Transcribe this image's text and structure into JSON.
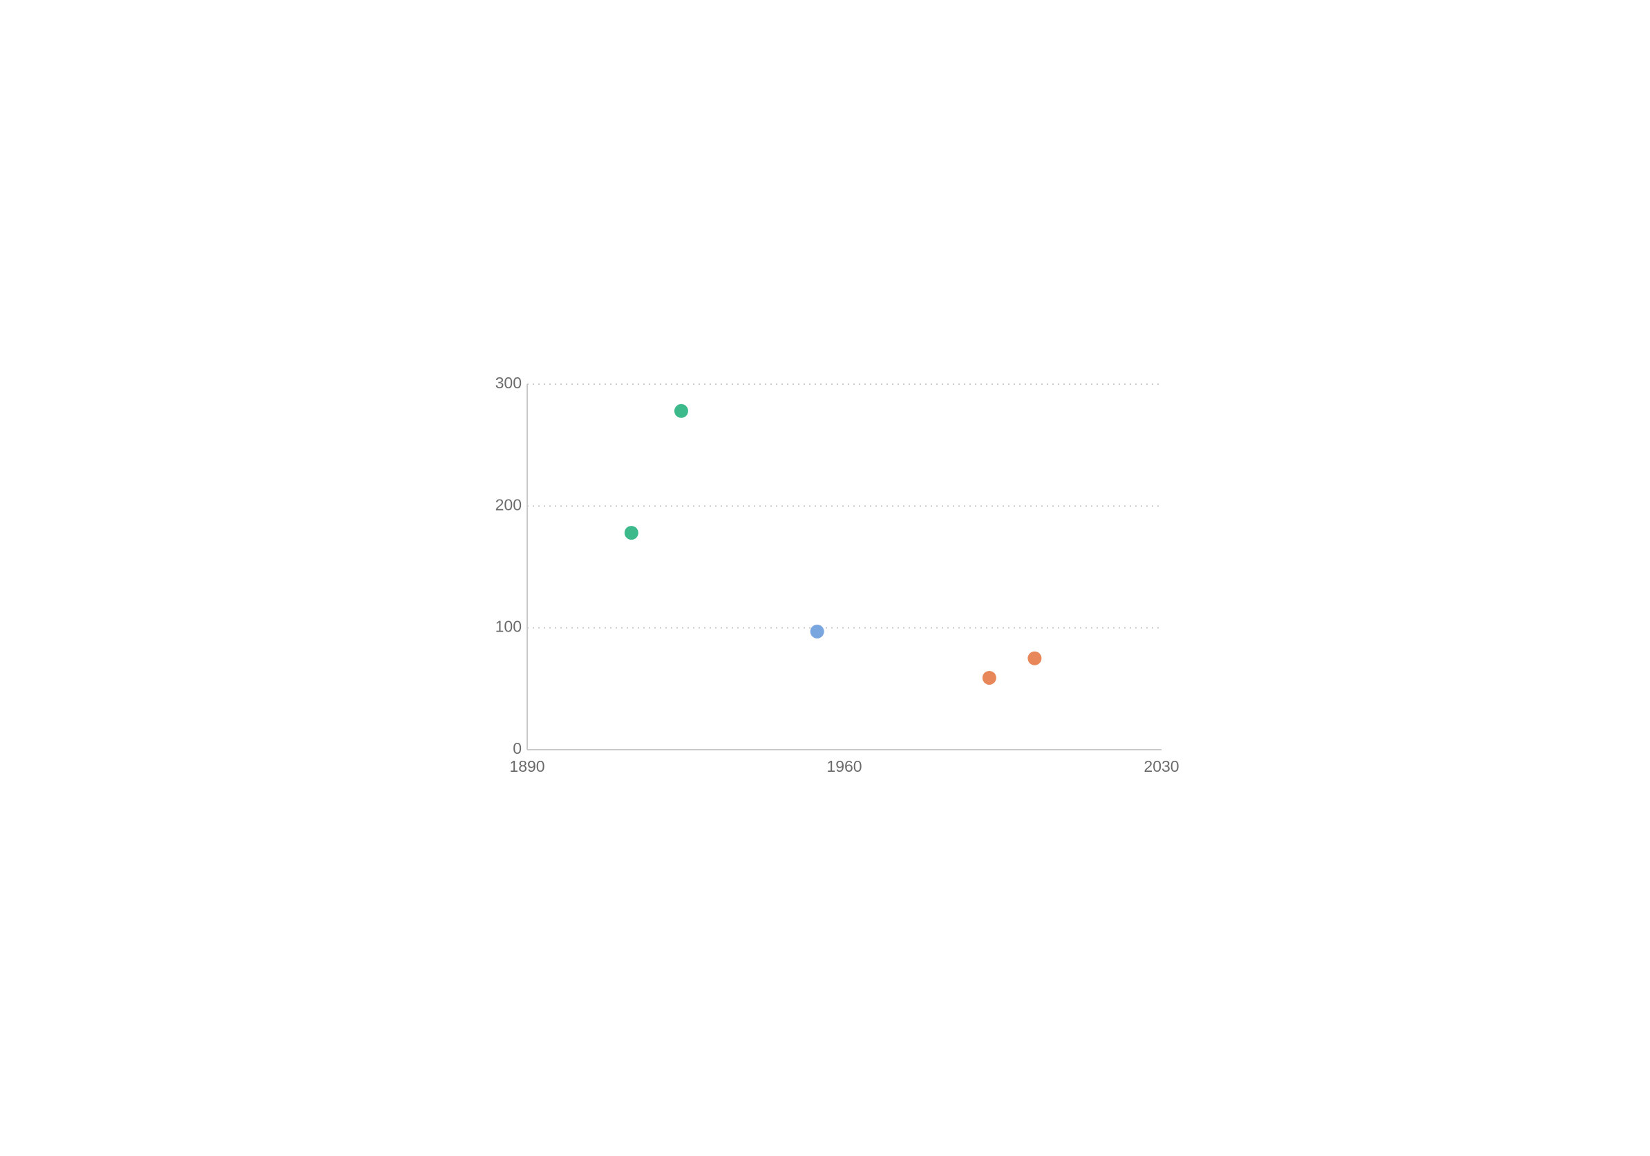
{
  "chart_data": {
    "type": "scatter",
    "title": "",
    "xlabel": "",
    "ylabel": "",
    "xlim": [
      1890,
      2030
    ],
    "ylim": [
      0,
      300
    ],
    "x_ticks": [
      1890,
      1960,
      2030
    ],
    "y_ticks": [
      0,
      100,
      200,
      300
    ],
    "x_tick_labels": [
      "1890",
      "1960",
      "2030"
    ],
    "y_tick_labels": [
      "0",
      "100",
      "200",
      "300"
    ],
    "grid": {
      "horizontal": true,
      "vertical": false,
      "style": "dotted"
    },
    "legend": "none",
    "series": [
      {
        "color": "#3dba8c",
        "points": [
          {
            "x": 1913,
            "y": 178
          },
          {
            "x": 1924,
            "y": 278
          }
        ]
      },
      {
        "color": "#7aa6e0",
        "points": [
          {
            "x": 1954,
            "y": 97
          }
        ]
      },
      {
        "color": "#e8875a",
        "points": [
          {
            "x": 1992,
            "y": 59
          },
          {
            "x": 2002,
            "y": 75
          }
        ]
      }
    ]
  },
  "colors": {
    "axis": "#c9c9c9",
    "grid": "#c9c9c9",
    "tick_label": "#6b6b6b"
  }
}
